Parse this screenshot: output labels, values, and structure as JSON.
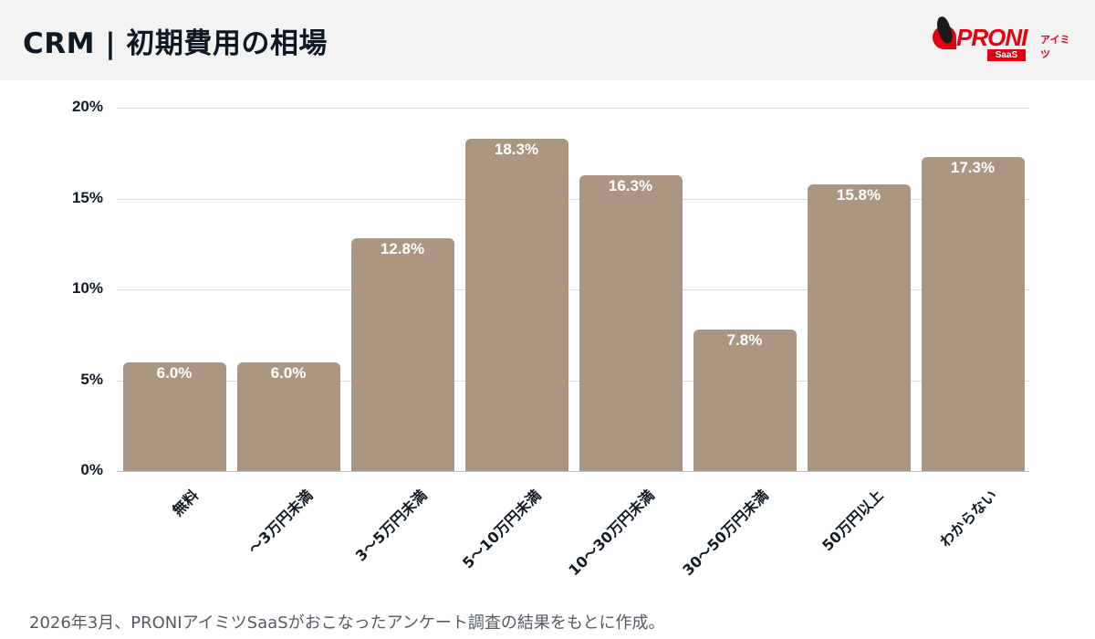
{
  "header": {
    "title": "CRM | 初期費用の相場",
    "logo": {
      "brand": "PRONI",
      "kana": "アイミツ",
      "sub": "SaaS",
      "icon": "penguin-logo-icon",
      "brand_color": "#e60012"
    }
  },
  "chart_data": {
    "type": "bar",
    "title": "CRM | 初期費用の相場",
    "xlabel": "",
    "ylabel": "",
    "categories": [
      "無料",
      "〜3万円未満",
      "3〜5万円未満",
      "5〜10万円未満",
      "10〜30万円未満",
      "30〜50万円未満",
      "50万円以上",
      "わからない"
    ],
    "values": [
      6.0,
      6.0,
      12.8,
      18.3,
      16.3,
      7.8,
      15.8,
      17.3
    ],
    "value_labels": [
      "6.0%",
      "6.0%",
      "12.8%",
      "18.3%",
      "16.3%",
      "7.8%",
      "15.8%",
      "17.3%"
    ],
    "unit": "%",
    "ylim": [
      0,
      20
    ],
    "yticks": [
      "0%",
      "5%",
      "10%",
      "15%",
      "20%"
    ],
    "grid": true,
    "legend": null,
    "bar_color": "#ab9682"
  },
  "footnote": "2026年3月、PRONIアイミツSaaSがおこなったアンケート調査の結果をもとに作成。"
}
